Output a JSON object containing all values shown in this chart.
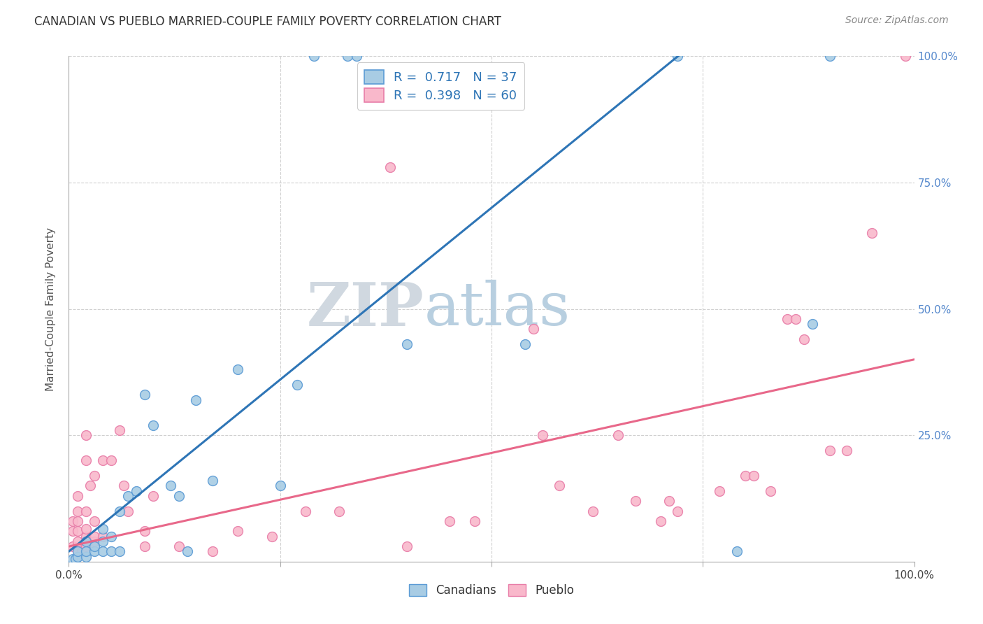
{
  "title": "CANADIAN VS PUEBLO MARRIED-COUPLE FAMILY POVERTY CORRELATION CHART",
  "source": "Source: ZipAtlas.com",
  "ylabel": "Married-Couple Family Poverty",
  "xlabel": "",
  "watermark_zip": "ZIP",
  "watermark_atlas": "atlas",
  "canadian_R": 0.717,
  "canadian_N": 37,
  "pueblo_R": 0.398,
  "pueblo_N": 60,
  "canadian_color": "#a8cce4",
  "pueblo_color": "#f9b8cb",
  "canadian_edge_color": "#5b9bd5",
  "pueblo_edge_color": "#e87da8",
  "canadian_line_color": "#2e75b6",
  "pueblo_line_color": "#e8688a",
  "background_color": "#ffffff",
  "grid_color": "#d0d0d0",
  "xlim": [
    0,
    1
  ],
  "ylim": [
    0,
    1
  ],
  "canadian_line": [
    [
      0.0,
      0.02
    ],
    [
      1.0,
      1.38
    ]
  ],
  "pueblo_line": [
    [
      0.0,
      0.03
    ],
    [
      1.0,
      0.4
    ]
  ],
  "canadian_scatter": [
    [
      0.005,
      0.005
    ],
    [
      0.008,
      0.005
    ],
    [
      0.01,
      0.01
    ],
    [
      0.01,
      0.02
    ],
    [
      0.02,
      0.01
    ],
    [
      0.02,
      0.02
    ],
    [
      0.02,
      0.04
    ],
    [
      0.03,
      0.02
    ],
    [
      0.03,
      0.03
    ],
    [
      0.04,
      0.02
    ],
    [
      0.04,
      0.04
    ],
    [
      0.04,
      0.065
    ],
    [
      0.05,
      0.02
    ],
    [
      0.05,
      0.05
    ],
    [
      0.06,
      0.02
    ],
    [
      0.06,
      0.1
    ],
    [
      0.07,
      0.13
    ],
    [
      0.08,
      0.14
    ],
    [
      0.09,
      0.33
    ],
    [
      0.1,
      0.27
    ],
    [
      0.12,
      0.15
    ],
    [
      0.13,
      0.13
    ],
    [
      0.14,
      0.02
    ],
    [
      0.15,
      0.32
    ],
    [
      0.17,
      0.16
    ],
    [
      0.2,
      0.38
    ],
    [
      0.25,
      0.15
    ],
    [
      0.27,
      0.35
    ],
    [
      0.29,
      1.0
    ],
    [
      0.33,
      1.0
    ],
    [
      0.34,
      1.0
    ],
    [
      0.4,
      0.43
    ],
    [
      0.54,
      0.43
    ],
    [
      0.72,
      1.0
    ],
    [
      0.79,
      0.02
    ],
    [
      0.88,
      0.47
    ],
    [
      0.9,
      1.0
    ]
  ],
  "pueblo_scatter": [
    [
      0.005,
      0.03
    ],
    [
      0.005,
      0.06
    ],
    [
      0.005,
      0.08
    ],
    [
      0.01,
      0.02
    ],
    [
      0.01,
      0.04
    ],
    [
      0.01,
      0.06
    ],
    [
      0.01,
      0.08
    ],
    [
      0.01,
      0.1
    ],
    [
      0.01,
      0.13
    ],
    [
      0.015,
      0.02
    ],
    [
      0.02,
      0.03
    ],
    [
      0.02,
      0.05
    ],
    [
      0.02,
      0.065
    ],
    [
      0.02,
      0.1
    ],
    [
      0.02,
      0.2
    ],
    [
      0.02,
      0.25
    ],
    [
      0.025,
      0.15
    ],
    [
      0.03,
      0.04
    ],
    [
      0.03,
      0.05
    ],
    [
      0.03,
      0.08
    ],
    [
      0.03,
      0.17
    ],
    [
      0.04,
      0.05
    ],
    [
      0.04,
      0.2
    ],
    [
      0.05,
      0.2
    ],
    [
      0.06,
      0.26
    ],
    [
      0.065,
      0.15
    ],
    [
      0.07,
      0.1
    ],
    [
      0.09,
      0.03
    ],
    [
      0.09,
      0.06
    ],
    [
      0.1,
      0.13
    ],
    [
      0.13,
      0.03
    ],
    [
      0.17,
      0.02
    ],
    [
      0.2,
      0.06
    ],
    [
      0.24,
      0.05
    ],
    [
      0.28,
      0.1
    ],
    [
      0.32,
      0.1
    ],
    [
      0.38,
      0.78
    ],
    [
      0.4,
      0.03
    ],
    [
      0.45,
      0.08
    ],
    [
      0.48,
      0.08
    ],
    [
      0.55,
      0.46
    ],
    [
      0.56,
      0.25
    ],
    [
      0.58,
      0.15
    ],
    [
      0.62,
      0.1
    ],
    [
      0.65,
      0.25
    ],
    [
      0.67,
      0.12
    ],
    [
      0.7,
      0.08
    ],
    [
      0.71,
      0.12
    ],
    [
      0.72,
      0.1
    ],
    [
      0.77,
      0.14
    ],
    [
      0.8,
      0.17
    ],
    [
      0.81,
      0.17
    ],
    [
      0.83,
      0.14
    ],
    [
      0.85,
      0.48
    ],
    [
      0.86,
      0.48
    ],
    [
      0.87,
      0.44
    ],
    [
      0.9,
      0.22
    ],
    [
      0.92,
      0.22
    ],
    [
      0.95,
      0.65
    ],
    [
      0.99,
      1.0
    ]
  ]
}
